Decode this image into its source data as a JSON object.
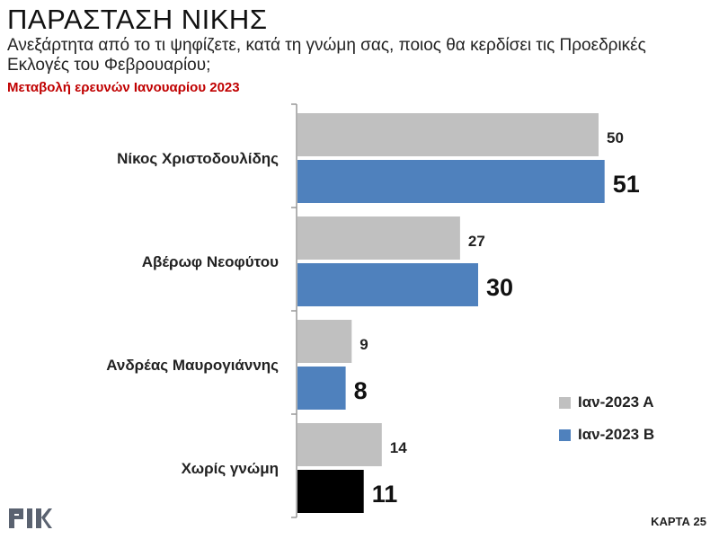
{
  "header": {
    "title": "ΠΑΡΑΣΤΑΣΗ ΝΙΚΗΣ",
    "subtitle": "Ανεξάρτητα από το τι ψηφίζετε, κατά τη γνώμη σας, ποιος θα κερδίσει τις Προεδρικές Εκλογές του Φεβρουαρίου;",
    "note": "Μεταβολή ερευνών Ιανουαρίου 2023"
  },
  "chart_data": {
    "type": "bar",
    "orientation": "horizontal",
    "categories": [
      "Νίκος Χριστοδουλίδης",
      "Αβέρωφ Νεοφύτου",
      "Ανδρέας Μαυρογιάννης",
      "Χωρίς γνώμη"
    ],
    "series": [
      {
        "name": "Ιαν-2023 Α",
        "values": [
          50,
          27,
          9,
          14
        ],
        "color": "#c0c0c0"
      },
      {
        "name": "Ιαν-2023 Β",
        "values": [
          51,
          30,
          8,
          11
        ],
        "color": "#4f81bd",
        "point_colors": [
          "#4f81bd",
          "#4f81bd",
          "#4f81bd",
          "#000000"
        ]
      }
    ],
    "xlim": [
      0,
      100
    ],
    "grid": false,
    "legend_position": "bottom-right"
  },
  "footer": {
    "logo": "ΡΙΚ",
    "card": "ΚΑΡΤΑ 25"
  }
}
